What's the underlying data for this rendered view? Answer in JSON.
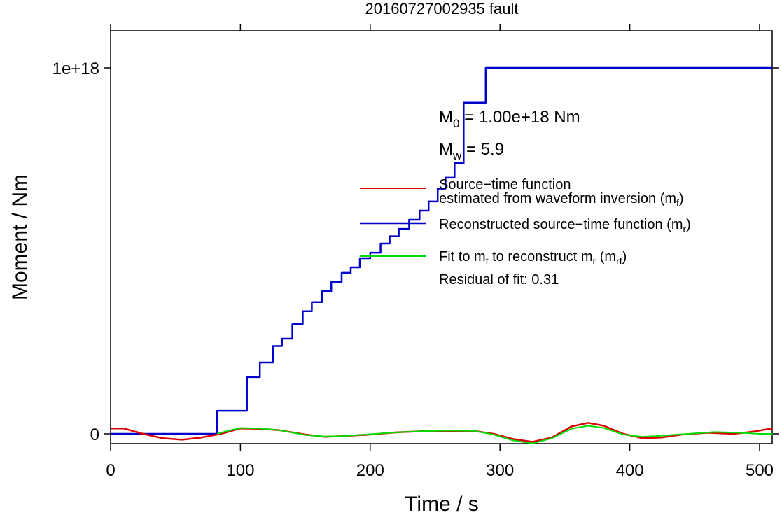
{
  "chart_data": {
    "type": "line",
    "title": "20160727002935 fault",
    "xlabel": "Time / s",
    "ylabel": "Moment / Nm",
    "xlim": [
      0,
      510
    ],
    "ylim": [
      -3e+16,
      1.1e+18
    ],
    "x_ticks": [
      0,
      100,
      200,
      300,
      400,
      500
    ],
    "x_tick_labels": [
      "0",
      "100",
      "200",
      "300",
      "400",
      "500"
    ],
    "y_ticks": [
      0,
      1e+18
    ],
    "y_tick_labels": [
      "0",
      "1e+18"
    ],
    "grid": false,
    "legend_placement": "right",
    "colors": {
      "mf": "#e00000",
      "mr": "#0000cc",
      "mrf": "#00dd00"
    },
    "annotations": {
      "m0_main": "M",
      "m0_sub": "0",
      "m0_rest": " = 1.00e+18 Nm",
      "mw_main": "M",
      "mw_sub": "w",
      "mw_rest": " = 5.9",
      "residual": "Residual of fit: 0.31"
    },
    "legend": [
      {
        "key": "mf",
        "line1": "Source−time function",
        "line2_main": "estimated from waveform inversion (m",
        "line2_sub": "f",
        "line2_end": ")"
      },
      {
        "key": "mr",
        "line1_main": "Reconstructed source−time function (m",
        "line1_sub": "r",
        "line1_end": ")"
      },
      {
        "key": "mrf",
        "line1_a": "Fit to m",
        "line1_a_sub": "f",
        "line1_b": " to reconstruct m",
        "line1_b_sub": "r",
        "line1_c": " (m",
        "line1_c_sub": "rf",
        "line1_end": ")"
      }
    ],
    "series": [
      {
        "key": "mr",
        "name": "Reconstructed source−time function (m_r)",
        "step": true,
        "points": [
          [
            0,
            0
          ],
          [
            82,
            0
          ],
          [
            82,
            6.3e+16
          ],
          [
            105,
            6.3e+16
          ],
          [
            105,
            1.55e+17
          ],
          [
            115,
            1.55e+17
          ],
          [
            115,
            1.95e+17
          ],
          [
            125,
            1.95e+17
          ],
          [
            125,
            2.4e+17
          ],
          [
            132,
            2.4e+17
          ],
          [
            132,
            2.6e+17
          ],
          [
            140,
            2.6e+17
          ],
          [
            140,
            3e+17
          ],
          [
            148,
            3e+17
          ],
          [
            148,
            3.35e+17
          ],
          [
            155,
            3.35e+17
          ],
          [
            155,
            3.6e+17
          ],
          [
            163,
            3.6e+17
          ],
          [
            163,
            3.9e+17
          ],
          [
            170,
            3.9e+17
          ],
          [
            170,
            4.15e+17
          ],
          [
            178,
            4.15e+17
          ],
          [
            178,
            4.4e+17
          ],
          [
            185,
            4.4e+17
          ],
          [
            185,
            4.55e+17
          ],
          [
            192,
            4.55e+17
          ],
          [
            192,
            4.8e+17
          ],
          [
            200,
            4.8e+17
          ],
          [
            200,
            4.95e+17
          ],
          [
            208,
            4.95e+17
          ],
          [
            208,
            5.2e+17
          ],
          [
            215,
            5.2e+17
          ],
          [
            215,
            5.4e+17
          ],
          [
            222,
            5.4e+17
          ],
          [
            222,
            5.6e+17
          ],
          [
            230,
            5.6e+17
          ],
          [
            230,
            5.85e+17
          ],
          [
            238,
            5.85e+17
          ],
          [
            238,
            6.1e+17
          ],
          [
            245,
            6.1e+17
          ],
          [
            245,
            6.35e+17
          ],
          [
            252,
            6.35e+17
          ],
          [
            252,
            6.7e+17
          ],
          [
            258,
            6.7e+17
          ],
          [
            258,
            7e+17
          ],
          [
            265,
            7e+17
          ],
          [
            265,
            7.4e+17
          ],
          [
            272,
            7.4e+17
          ],
          [
            272,
            9.05e+17
          ],
          [
            289,
            9.05e+17
          ],
          [
            289,
            1e+18
          ],
          [
            510,
            1e+18
          ]
        ]
      },
      {
        "key": "mf",
        "name": "Source−time function estimated from waveform inversion (m_f)",
        "step": false,
        "points": [
          [
            0,
            1.5e+16
          ],
          [
            10,
            1.5e+16
          ],
          [
            25,
            0.0
          ],
          [
            40,
            -1.2e+16
          ],
          [
            55,
            -1.6e+16
          ],
          [
            70,
            -1e+16
          ],
          [
            85,
            0.0
          ],
          [
            100,
            1.5e+16
          ],
          [
            115,
            1.4e+16
          ],
          [
            130,
            1e+16
          ],
          [
            150,
            -2000000000000000.0
          ],
          [
            165,
            -8000000000000000.0
          ],
          [
            180,
            -6000000000000000.0
          ],
          [
            200,
            -2000000000000000.0
          ],
          [
            220,
            4000000000000000.0
          ],
          [
            240,
            7000000000000000.0
          ],
          [
            260,
            8000000000000000.0
          ],
          [
            280,
            8000000000000000.0
          ],
          [
            295,
            0.0
          ],
          [
            310,
            -1.4e+16
          ],
          [
            325,
            -2.2e+16
          ],
          [
            340,
            -1e+16
          ],
          [
            355,
            2e+16
          ],
          [
            368,
            3e+16
          ],
          [
            380,
            2.2e+16
          ],
          [
            395,
            0.0
          ],
          [
            410,
            -1.2e+16
          ],
          [
            425,
            -1e+16
          ],
          [
            440,
            -2000000000000000.0
          ],
          [
            460,
            3000000000000000.0
          ],
          [
            480,
            0.0
          ],
          [
            495,
            6000000000000000.0
          ],
          [
            510,
            1.5e+16
          ]
        ]
      },
      {
        "key": "mrf",
        "name": "Fit to m_f to reconstruct m_r (m_rf)",
        "step": false,
        "points": [
          [
            82,
            0.0
          ],
          [
            90,
            8000000000000000.0
          ],
          [
            100,
            1.6e+16
          ],
          [
            115,
            1.5e+16
          ],
          [
            130,
            1e+16
          ],
          [
            150,
            -3000000000000000.0
          ],
          [
            165,
            -7000000000000000.0
          ],
          [
            180,
            -6000000000000000.0
          ],
          [
            200,
            -1000000000000000.0
          ],
          [
            220,
            4000000000000000.0
          ],
          [
            240,
            7000000000000000.0
          ],
          [
            260,
            9000000000000000.0
          ],
          [
            280,
            8000000000000000.0
          ],
          [
            295,
            -2000000000000000.0
          ],
          [
            310,
            -1.8e+16
          ],
          [
            325,
            -2.6e+16
          ],
          [
            340,
            -1.2e+16
          ],
          [
            355,
            1.4e+16
          ],
          [
            368,
            2.2e+16
          ],
          [
            380,
            1.6e+16
          ],
          [
            395,
            -2000000000000000.0
          ],
          [
            410,
            -8000000000000000.0
          ],
          [
            425,
            -5000000000000000.0
          ],
          [
            445,
            0.0
          ],
          [
            465,
            5000000000000000.0
          ],
          [
            485,
            3000000000000000.0
          ],
          [
            500,
            0.0
          ],
          [
            510,
            0.0
          ]
        ]
      }
    ]
  }
}
